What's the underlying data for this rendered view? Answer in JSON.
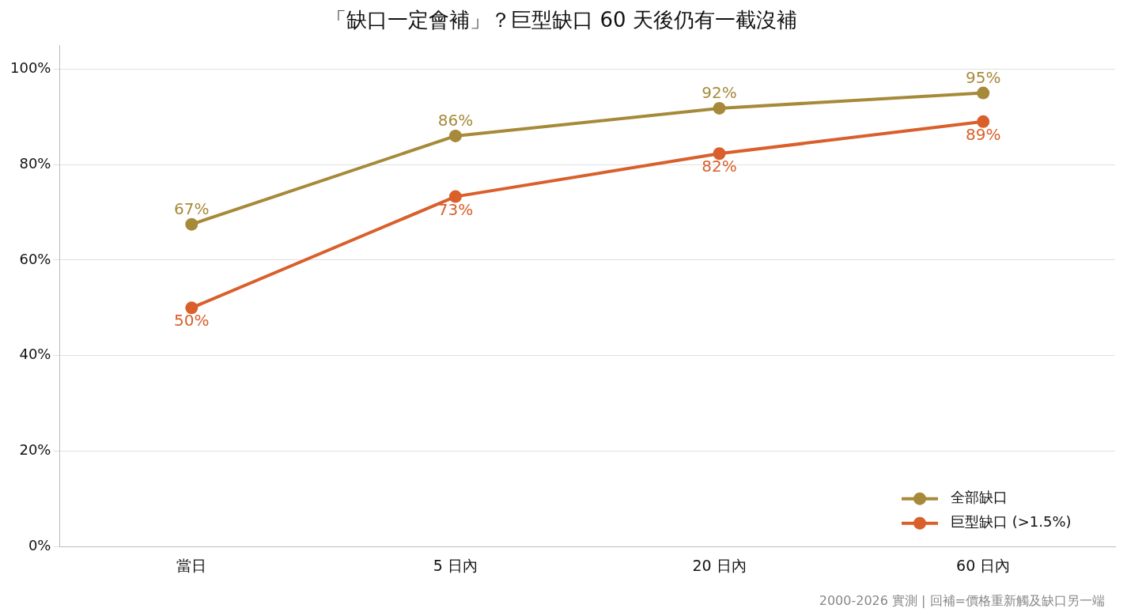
{
  "chart_data": {
    "type": "line",
    "title": "「缺口一定會補」？巨型缺口 60 天後仍有一截沒補",
    "categories": [
      "當日",
      "5 日內",
      "20 日內",
      "60 日內"
    ],
    "series": [
      {
        "name": "全部缺口",
        "color": "#a68a3a",
        "values": [
          67.5,
          86,
          91.8,
          95
        ],
        "value_labels": [
          "67%",
          "86%",
          "92%",
          "95%"
        ]
      },
      {
        "name": "巨型缺口 (>1.5%)",
        "color": "#d95f2b",
        "values": [
          50,
          73.3,
          82.3,
          89
        ],
        "value_labels": [
          "50%",
          "73%",
          "82%",
          "89%"
        ]
      }
    ],
    "ylim": [
      0,
      105
    ],
    "yticks": [
      {
        "value": 0,
        "label": "0%"
      },
      {
        "value": 20,
        "label": "20%"
      },
      {
        "value": 40,
        "label": "40%"
      },
      {
        "value": 60,
        "label": "60%"
      },
      {
        "value": 80,
        "label": "80%"
      },
      {
        "value": 100,
        "label": "100%"
      }
    ],
    "grid": "y",
    "legend": "bottom right",
    "marker": "circle",
    "line_style": "solid",
    "annotations": [
      "2000-2026 實測 | 回補=價格重新觸及缺口另一端"
    ]
  }
}
